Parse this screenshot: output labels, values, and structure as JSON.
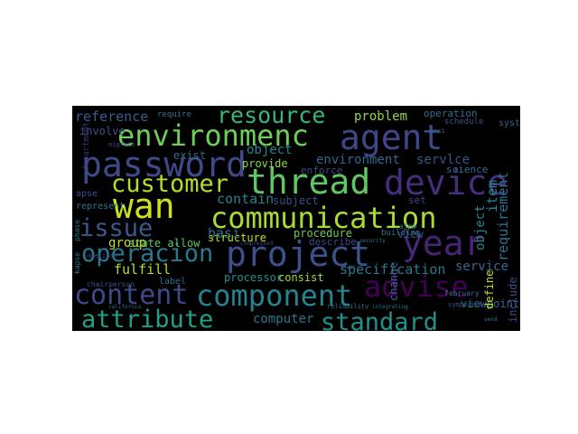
{
  "words": [
    {
      "text": "resource",
      "color": "#35b779"
    },
    {
      "text": "environmenc",
      "color": "#6ece58"
    },
    {
      "text": "agent",
      "color": "#3f4788"
    },
    {
      "text": "password",
      "color": "#3e4a89"
    },
    {
      "text": "thread",
      "color": "#5ec962"
    },
    {
      "text": "device",
      "color": "#472d7b"
    },
    {
      "text": "customer",
      "color": "#b5de2b"
    },
    {
      "text": "wan",
      "color": "#cde11d"
    },
    {
      "text": "communication",
      "color": "#a8db34"
    },
    {
      "text": "issue",
      "color": "#38598c"
    },
    {
      "text": "year",
      "color": "#482475"
    },
    {
      "text": "operacion",
      "color": "#2a788e"
    },
    {
      "text": "project",
      "color": "#3b518b"
    },
    {
      "text": "advise",
      "color": "#440154"
    },
    {
      "text": "content",
      "color": "#3e4989"
    },
    {
      "text": "component",
      "color": "#26828e"
    },
    {
      "text": "attribute",
      "color": "#1fa187"
    },
    {
      "text": "standard",
      "color": "#21918c"
    },
    {
      "text": "reference",
      "color": "#34618d"
    },
    {
      "text": "problem",
      "color": "#8fd744"
    },
    {
      "text": "operation",
      "color": "#2d708e"
    },
    {
      "text": "environment",
      "color": "#31688e"
    },
    {
      "text": "service",
      "color": "#31688e"
    },
    {
      "text": "servlce",
      "color": "#3a548c"
    },
    {
      "text": "item",
      "color": "#23898e"
    },
    {
      "text": "requirement",
      "color": "#2c728e"
    },
    {
      "text": "object",
      "color": "#25848e"
    },
    {
      "text": "provide",
      "color": "#8fd744"
    },
    {
      "text": "enforce",
      "color": "#3e4a89"
    },
    {
      "text": "science",
      "color": "#2c728e"
    },
    {
      "text": "contain",
      "color": "#26828e"
    },
    {
      "text": "subject",
      "color": "#3b528b"
    },
    {
      "text": "group",
      "color": "#c2df23"
    },
    {
      "text": "structure",
      "color": "#bddf26"
    },
    {
      "text": "basi",
      "color": "#2d708e"
    },
    {
      "text": "procedure",
      "color": "#6ece58"
    },
    {
      "text": "describe",
      "color": "#3f4788"
    },
    {
      "text": "view",
      "color": "#3b528b"
    },
    {
      "text": "state allow",
      "color": "#5ec962"
    },
    {
      "text": "fulfill",
      "color": "#b5de2b"
    },
    {
      "text": "specification",
      "color": "#2a788e"
    },
    {
      "text": "processor",
      "color": "#21918c"
    },
    {
      "text": "consist",
      "color": "#a0da39"
    },
    {
      "text": "computer",
      "color": "#2a788e"
    },
    {
      "text": "viewpoint",
      "color": "#31688e"
    },
    {
      "text": "define",
      "color": "#c2df23"
    },
    {
      "text": "include",
      "color": "#3e4a89"
    },
    {
      "text": "exist",
      "color": "#2d708e"
    },
    {
      "text": "involve",
      "color": "#3b528b"
    },
    {
      "text": "apse",
      "color": "#3b528b"
    },
    {
      "text": "represent",
      "color": "#2a788e"
    },
    {
      "text": "label",
      "color": "#2c728e"
    },
    {
      "text": "change",
      "color": "#31688e"
    },
    {
      "text": "set",
      "color": "#3e4a89"
    },
    {
      "text": "require",
      "color": "#2a788e"
    },
    {
      "text": "migrate",
      "color": "#3e4a89"
    },
    {
      "text": "department",
      "color": "#46327e"
    },
    {
      "text": "schedule",
      "color": "#3b528b"
    },
    {
      "text": "system",
      "color": "#31688e"
    },
    {
      "text": "ansi",
      "color": "#2c728e"
    },
    {
      "text": "chairperson",
      "color": "#3b528b"
    },
    {
      "text": "kapse",
      "color": "#2a788e"
    },
    {
      "text": "american",
      "color": "#3e4a89"
    },
    {
      "text": "february",
      "color": "#2c728e"
    },
    {
      "text": "phase",
      "color": "#2a788e"
    },
    {
      "text": "nasc",
      "color": "#2c728e"
    },
    {
      "text": "symposium",
      "color": "#3b528b"
    },
    {
      "text": "reliability",
      "color": "#2a788e"
    },
    {
      "text": "integrating",
      "color": "#2c728e"
    },
    {
      "text": "security",
      "color": "#2a788e"
    },
    {
      "text": "compressed",
      "color": "#3e4a89"
    },
    {
      "text": "california",
      "color": "#31688e"
    },
    {
      "text": "building",
      "color": "#2c728e"
    },
    {
      "text": "ajpo",
      "color": "#2a788e"
    },
    {
      "text": "send",
      "color": "#2c728e"
    },
    {
      "text": "proceedings",
      "color": "#2c728e"
    }
  ]
}
